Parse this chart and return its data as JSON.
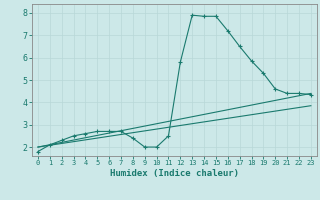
{
  "title": "",
  "xlabel": "Humidex (Indice chaleur)",
  "bg_color": "#cce8e8",
  "line_color": "#1a7a6e",
  "grid_color": "#b8d8d8",
  "xlim": [
    -0.5,
    23.5
  ],
  "ylim": [
    1.6,
    8.4
  ],
  "xticks": [
    0,
    1,
    2,
    3,
    4,
    5,
    6,
    7,
    8,
    9,
    10,
    11,
    12,
    13,
    14,
    15,
    16,
    17,
    18,
    19,
    20,
    21,
    22,
    23
  ],
  "yticks": [
    2,
    3,
    4,
    5,
    6,
    7,
    8
  ],
  "line1_x": [
    0,
    1,
    2,
    3,
    4,
    5,
    6,
    7,
    8,
    9,
    10,
    11,
    12,
    13,
    14,
    15,
    16,
    17,
    18,
    19,
    20,
    21,
    22,
    23
  ],
  "line1_y": [
    1.8,
    2.1,
    2.3,
    2.5,
    2.6,
    2.7,
    2.7,
    2.7,
    2.4,
    2.0,
    2.0,
    2.5,
    5.8,
    7.9,
    7.85,
    7.85,
    7.2,
    6.5,
    5.85,
    5.3,
    4.6,
    4.4,
    4.4,
    4.35
  ],
  "line2_x": [
    0,
    23
  ],
  "line2_y": [
    2.0,
    4.4
  ],
  "line3_x": [
    0,
    23
  ],
  "line3_y": [
    2.0,
    3.85
  ],
  "marker": "+",
  "markersize": 3.0,
  "linewidth": 0.8
}
